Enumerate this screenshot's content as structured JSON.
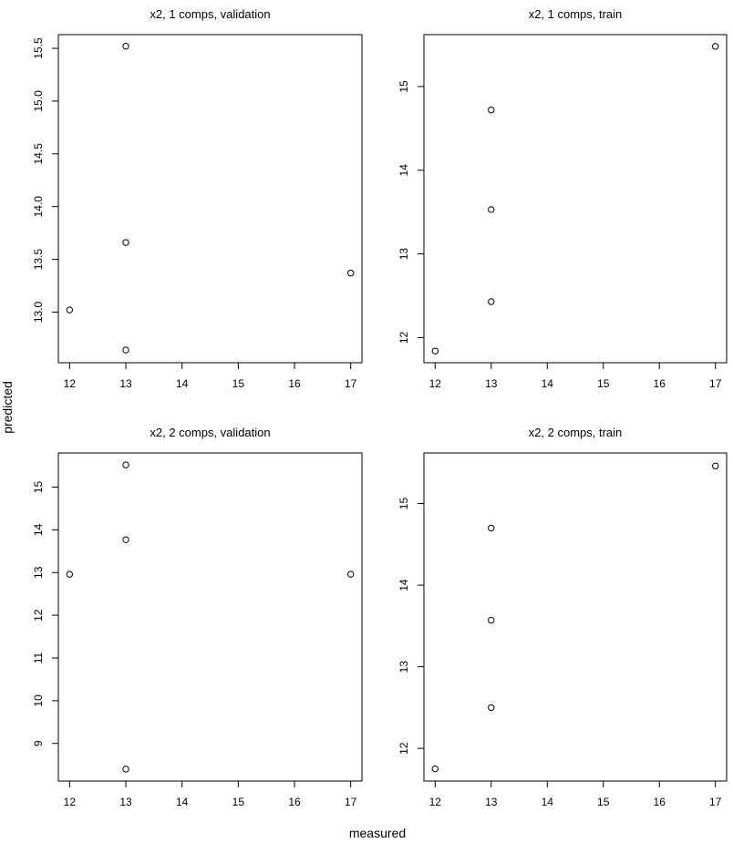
{
  "figure": {
    "xlabel": "measured",
    "ylabel": "predicted"
  },
  "chart_data": [
    {
      "type": "scatter",
      "title": "x2, 1 comps, validation",
      "xlim": [
        11.8,
        17.2
      ],
      "ylim": [
        12.52,
        15.63
      ],
      "xticks": [
        12,
        13,
        14,
        15,
        16,
        17
      ],
      "yticks": [
        13.0,
        13.5,
        14.0,
        14.5,
        15.0,
        15.5
      ],
      "ytick_labels": [
        "13.0",
        "13.5",
        "14.0",
        "14.5",
        "15.0",
        "15.5"
      ],
      "points": [
        {
          "x": 12,
          "y": 13.02
        },
        {
          "x": 13,
          "y": 15.52
        },
        {
          "x": 13,
          "y": 13.66
        },
        {
          "x": 13,
          "y": 12.64
        },
        {
          "x": 17,
          "y": 13.37
        }
      ]
    },
    {
      "type": "scatter",
      "title": "x2, 1 comps, train",
      "xlim": [
        11.8,
        17.2
      ],
      "ylim": [
        11.7,
        15.62
      ],
      "xticks": [
        12,
        13,
        14,
        15,
        16,
        17
      ],
      "yticks": [
        12,
        13,
        14,
        15
      ],
      "ytick_labels": [
        "12",
        "13",
        "14",
        "15"
      ],
      "points": [
        {
          "x": 12,
          "y": 11.84
        },
        {
          "x": 13,
          "y": 14.72
        },
        {
          "x": 13,
          "y": 13.53
        },
        {
          "x": 13,
          "y": 12.43
        },
        {
          "x": 17,
          "y": 15.48
        }
      ]
    },
    {
      "type": "scatter",
      "title": "x2, 2 comps, validation",
      "xlim": [
        11.8,
        17.2
      ],
      "ylim": [
        8.12,
        15.8
      ],
      "xticks": [
        12,
        13,
        14,
        15,
        16,
        17
      ],
      "yticks": [
        9,
        10,
        11,
        12,
        13,
        14,
        15
      ],
      "ytick_labels": [
        "9",
        "10",
        "11",
        "12",
        "13",
        "14",
        "15"
      ],
      "points": [
        {
          "x": 12,
          "y": 12.96
        },
        {
          "x": 13,
          "y": 15.52
        },
        {
          "x": 13,
          "y": 13.77
        },
        {
          "x": 13,
          "y": 8.4
        },
        {
          "x": 17,
          "y": 12.96
        }
      ]
    },
    {
      "type": "scatter",
      "title": "x2, 2 comps, train",
      "xlim": [
        11.8,
        17.2
      ],
      "ylim": [
        11.6,
        15.62
      ],
      "xticks": [
        12,
        13,
        14,
        15,
        16,
        17
      ],
      "yticks": [
        12,
        13,
        14,
        15
      ],
      "ytick_labels": [
        "12",
        "13",
        "14",
        "15"
      ],
      "points": [
        {
          "x": 12,
          "y": 11.75
        },
        {
          "x": 13,
          "y": 14.7
        },
        {
          "x": 13,
          "y": 13.57
        },
        {
          "x": 13,
          "y": 12.5
        },
        {
          "x": 17,
          "y": 15.46
        }
      ]
    }
  ]
}
